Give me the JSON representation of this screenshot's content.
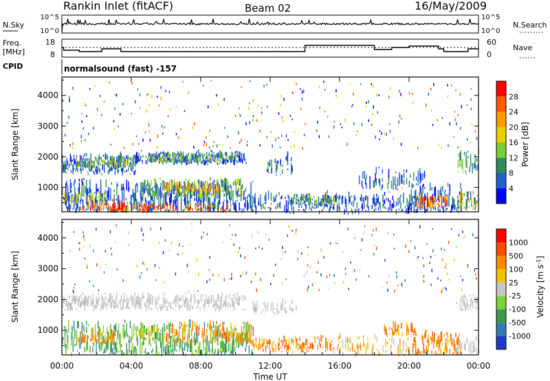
{
  "header": {
    "station": "Rankin Inlet (fitACF)",
    "beam": "Beam 02",
    "date": "16/May/2009"
  },
  "panels": {
    "nsky": {
      "label": "N.Sky",
      "right_label": "N.Search",
      "ticks_left": [
        "10^5",
        "10^0"
      ],
      "ticks_right": [
        "10^5",
        "10^0"
      ]
    },
    "freq": {
      "label_line1": "Freq.",
      "label_line2": "[MHz]",
      "right_label": "Nave",
      "ticks_left": [
        "18",
        "8"
      ],
      "ticks_right": [
        "60",
        "0"
      ]
    },
    "cpid": {
      "label": "CPID",
      "program": "normalsound (fast) -157"
    }
  },
  "chart_data": [
    {
      "type": "heatmap",
      "name": "power",
      "ylabel": "Slant Range [km]",
      "yticks": [
        1000,
        2000,
        3000,
        4000
      ],
      "ylim": [
        200,
        4600
      ],
      "colorbar_label": "Power [dB]",
      "colorbar_ticks": [
        "4",
        "8",
        "12",
        "16",
        "20",
        "24",
        "28"
      ],
      "colors": [
        "#0000ff",
        "#1f5fd0",
        "#2e8b57",
        "#7ccd32",
        "#e6d200",
        "#ff9a00",
        "#ff5a00",
        "#ff0000"
      ]
    },
    {
      "type": "heatmap",
      "name": "velocity",
      "ylabel": "Slant Range [km]",
      "yticks": [
        1000,
        2000,
        3000,
        4000
      ],
      "ylim": [
        200,
        4600
      ],
      "colorbar_label": "Velocity [m s^-1]",
      "colorbar_ticks": [
        "1000",
        "500",
        "100",
        "25",
        "-25",
        "-100",
        "-500",
        "-1000"
      ],
      "colors": [
        "#1c3cc8",
        "#2e7fb0",
        "#3a9a4a",
        "#7dd23a",
        "#c8c8c8",
        "#f0c400",
        "#ff8a00",
        "#ff4a00",
        "#ff0000"
      ]
    }
  ],
  "time_axis": {
    "ticks": [
      "00:00",
      "04:00",
      "08:00",
      "12:00",
      "16:00",
      "20:00",
      "00:00"
    ],
    "xlabel": "Time UT"
  }
}
